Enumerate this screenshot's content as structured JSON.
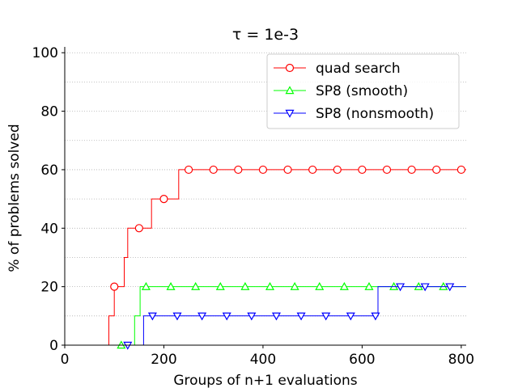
{
  "chart_data": {
    "type": "line",
    "title": "τ = 1e-3",
    "xlabel": "Groups of n+1 evaluations",
    "ylabel": "% of problems solved",
    "xlim": [
      0,
      810
    ],
    "ylim": [
      0,
      102
    ],
    "xticks": [
      0,
      200,
      400,
      600,
      800
    ],
    "yticks": [
      0,
      20,
      40,
      60,
      80,
      100
    ],
    "grid": "horizontal dotted",
    "legend_position": "top-right",
    "series": [
      {
        "name": "quad search",
        "color": "#ff0000",
        "marker": "circle",
        "steps": [
          [
            0,
            0
          ],
          [
            89,
            0
          ],
          [
            89,
            10
          ],
          [
            100,
            10
          ],
          [
            100,
            20
          ],
          [
            120,
            20
          ],
          [
            120,
            30
          ],
          [
            127,
            30
          ],
          [
            127,
            40
          ],
          [
            151,
            40
          ],
          [
            151,
            40
          ],
          [
            175,
            40
          ],
          [
            175,
            50
          ],
          [
            230,
            50
          ],
          [
            230,
            60
          ],
          [
            810,
            60
          ]
        ],
        "markers": [
          [
            100,
            20
          ],
          [
            150,
            40
          ],
          [
            200,
            50
          ],
          [
            250,
            60
          ],
          [
            300,
            60
          ],
          [
            350,
            60
          ],
          [
            400,
            60
          ],
          [
            450,
            60
          ],
          [
            500,
            60
          ],
          [
            550,
            60
          ],
          [
            600,
            60
          ],
          [
            650,
            60
          ],
          [
            700,
            60
          ],
          [
            750,
            60
          ],
          [
            800,
            60
          ]
        ]
      },
      {
        "name": "SP8 (smooth)",
        "color": "#00ff00",
        "marker": "triangle-up",
        "steps": [
          [
            0,
            0
          ],
          [
            141,
            0
          ],
          [
            141,
            10
          ],
          [
            152,
            10
          ],
          [
            152,
            20
          ],
          [
            810,
            20
          ]
        ],
        "markers": [
          [
            114,
            0
          ],
          [
            164,
            20
          ],
          [
            214,
            20
          ],
          [
            264,
            20
          ],
          [
            314,
            20
          ],
          [
            364,
            20
          ],
          [
            414,
            20
          ],
          [
            464,
            20
          ],
          [
            514,
            20
          ],
          [
            564,
            20
          ],
          [
            614,
            20
          ],
          [
            664,
            20
          ],
          [
            714,
            20
          ],
          [
            764,
            20
          ]
        ]
      },
      {
        "name": "SP8 (nonsmooth)",
        "color": "#0000ff",
        "marker": "triangle-down",
        "steps": [
          [
            0,
            0
          ],
          [
            159,
            0
          ],
          [
            159,
            10
          ],
          [
            632,
            10
          ],
          [
            632,
            20
          ],
          [
            810,
            20
          ]
        ],
        "markers": [
          [
            127,
            0
          ],
          [
            177,
            10
          ],
          [
            227,
            10
          ],
          [
            277,
            10
          ],
          [
            327,
            10
          ],
          [
            377,
            10
          ],
          [
            427,
            10
          ],
          [
            477,
            10
          ],
          [
            527,
            10
          ],
          [
            577,
            10
          ],
          [
            627,
            10
          ],
          [
            677,
            20
          ],
          [
            727,
            20
          ],
          [
            777,
            20
          ]
        ]
      }
    ]
  }
}
